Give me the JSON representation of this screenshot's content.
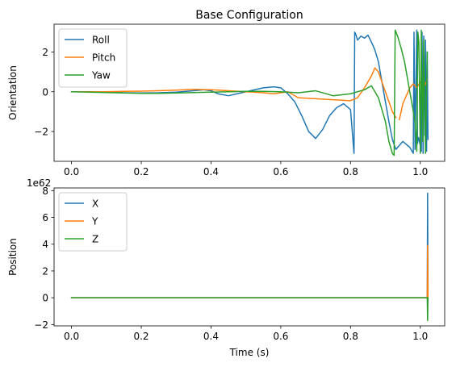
{
  "chart_data": [
    {
      "type": "line",
      "title": "Base Configuration",
      "xlabel": "",
      "ylabel": "Orientation",
      "xlim": [
        -0.05,
        1.07
      ],
      "ylim": [
        -3.5,
        3.4
      ],
      "xticks": [
        0.0,
        0.2,
        0.4,
        0.6,
        0.8,
        1.0
      ],
      "xtick_labels": [
        "0.0",
        "0.2",
        "0.4",
        "0.6",
        "0.8",
        "1.0"
      ],
      "yticks": [
        -2,
        0,
        2
      ],
      "ytick_labels": [
        "−2",
        "0",
        "2"
      ],
      "legend": "top-left",
      "series": [
        {
          "name": "Roll",
          "color": "#1f77b4",
          "x": [
            0.0,
            0.05,
            0.1,
            0.15,
            0.2,
            0.25,
            0.3,
            0.35,
            0.38,
            0.4,
            0.42,
            0.45,
            0.5,
            0.55,
            0.58,
            0.6,
            0.62,
            0.64,
            0.66,
            0.68,
            0.7,
            0.72,
            0.74,
            0.76,
            0.78,
            0.8,
            0.81,
            0.812,
            0.815,
            0.82,
            0.83,
            0.84,
            0.85,
            0.86,
            0.87,
            0.88,
            0.89,
            0.9,
            0.91,
            0.92,
            0.93,
            0.95,
            0.97,
            0.98,
            0.982,
            0.985,
            0.99,
            0.992,
            0.995,
            1.0,
            1.003,
            1.005,
            1.008,
            1.01,
            1.013,
            1.015,
            1.018,
            1.02,
            1.022
          ],
          "y": [
            0.0,
            0.0,
            -0.03,
            -0.05,
            -0.06,
            -0.05,
            -0.02,
            0.05,
            0.1,
            0.05,
            -0.1,
            -0.2,
            0.0,
            0.2,
            0.25,
            0.2,
            -0.1,
            -0.5,
            -1.2,
            -2.0,
            -2.35,
            -1.9,
            -1.2,
            -0.8,
            -0.6,
            -0.9,
            -3.1,
            3.0,
            2.9,
            2.6,
            2.8,
            2.7,
            2.85,
            2.5,
            2.1,
            1.5,
            0.5,
            -0.5,
            -1.5,
            -2.4,
            -2.9,
            -2.5,
            -2.8,
            -3.1,
            3.0,
            -2.9,
            3.1,
            -2.6,
            -2.3,
            -2.7,
            -3.0,
            3.0,
            -3.1,
            2.8,
            -2.2,
            2.6,
            -3.0,
            2.0,
            -2.4
          ]
        },
        {
          "name": "Pitch",
          "color": "#ff7f0e",
          "x": [
            0.0,
            0.05,
            0.1,
            0.15,
            0.2,
            0.25,
            0.3,
            0.35,
            0.4,
            0.45,
            0.5,
            0.55,
            0.58,
            0.6,
            0.62,
            0.65,
            0.7,
            0.75,
            0.8,
            0.82,
            0.84,
            0.86,
            0.87,
            0.88,
            0.89,
            0.9,
            0.91,
            0.92,
            0.93,
            null,
            0.94,
            0.95,
            0.96,
            0.97,
            0.98,
            0.99,
            1.0,
            1.01,
            1.015,
            1.02
          ],
          "y": [
            0.0,
            0.0,
            0.0,
            0.02,
            0.03,
            0.05,
            0.08,
            0.12,
            0.1,
            0.05,
            0.0,
            -0.05,
            -0.1,
            -0.05,
            0.0,
            -0.3,
            -0.35,
            -0.4,
            -0.45,
            -0.3,
            0.2,
            0.8,
            1.2,
            1.0,
            0.5,
            0.0,
            -0.5,
            -1.0,
            -1.3,
            null,
            -1.4,
            -0.6,
            -0.2,
            0.2,
            0.4,
            0.2,
            0.5,
            0.2,
            0.4,
            0.6
          ]
        },
        {
          "name": "Yaw",
          "color": "#2ca02c",
          "x": [
            0.0,
            0.05,
            0.1,
            0.15,
            0.2,
            0.25,
            0.3,
            0.35,
            0.4,
            0.45,
            0.5,
            0.55,
            0.6,
            0.65,
            0.7,
            0.75,
            0.8,
            0.82,
            0.84,
            0.86,
            0.87,
            0.88,
            0.9,
            0.91,
            0.92,
            0.925,
            0.928,
            0.935,
            0.945,
            0.955,
            0.965,
            0.975,
            0.985,
            0.99,
            0.993,
            0.996,
            1.0,
            1.003,
            1.007,
            1.01,
            1.015,
            1.02
          ],
          "y": [
            0.0,
            -0.02,
            -0.04,
            -0.06,
            -0.08,
            -0.08,
            -0.06,
            -0.04,
            -0.02,
            0.0,
            0.02,
            0.02,
            0.0,
            -0.05,
            0.05,
            -0.2,
            -0.1,
            0.0,
            0.1,
            0.3,
            0.0,
            -0.3,
            -1.5,
            -2.5,
            -3.1,
            -3.2,
            3.1,
            2.8,
            2.2,
            1.5,
            0.5,
            -0.5,
            -1.5,
            -3.0,
            3.0,
            2.5,
            -3.1,
            3.1,
            -2.5,
            2.6,
            -3.1,
            2.0
          ]
        }
      ]
    },
    {
      "type": "line",
      "title": "",
      "xlabel": "Time (s)",
      "ylabel": "Position",
      "offset_label": "1e62",
      "xlim": [
        -0.05,
        1.07
      ],
      "ylim": [
        -2.1,
        8.2
      ],
      "xticks": [
        0.0,
        0.2,
        0.4,
        0.6,
        0.8,
        1.0
      ],
      "xtick_labels": [
        "0.0",
        "0.2",
        "0.4",
        "0.6",
        "0.8",
        "1.0"
      ],
      "yticks": [
        -2,
        0,
        2,
        4,
        6,
        8
      ],
      "ytick_labels": [
        "−2",
        "0",
        "2",
        "4",
        "6",
        "8"
      ],
      "legend": "top-left",
      "series": [
        {
          "name": "X",
          "color": "#1f77b4",
          "x": [
            0.0,
            1.0,
            1.02,
            1.021,
            1.022
          ],
          "y": [
            0.0,
            0.0,
            0.0,
            7.8,
            0.0
          ]
        },
        {
          "name": "Y",
          "color": "#ff7f0e",
          "x": [
            0.0,
            1.0,
            1.02,
            1.021,
            1.022
          ],
          "y": [
            0.0,
            0.0,
            0.0,
            3.9,
            0.0
          ]
        },
        {
          "name": "Z",
          "color": "#2ca02c",
          "x": [
            0.0,
            1.0,
            1.02,
            1.021,
            1.022
          ],
          "y": [
            0.0,
            0.0,
            0.0,
            -1.7,
            0.0
          ]
        }
      ]
    }
  ]
}
